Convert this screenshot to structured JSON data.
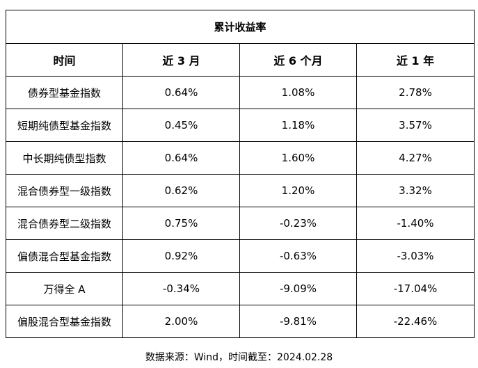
{
  "table": {
    "title": "累计收益率",
    "headers": [
      "时间",
      "近 3 月",
      "近 6 个月",
      "近 1 年"
    ],
    "rows": [
      [
        "债券型基金指数",
        "0.64%",
        "1.08%",
        "2.78%"
      ],
      [
        "短期纯债型基金指数",
        "0.45%",
        "1.18%",
        "3.57%"
      ],
      [
        "中长期纯债型指数",
        "0.64%",
        "1.60%",
        "4.27%"
      ],
      [
        "混合债券型一级指数",
        "0.62%",
        "1.20%",
        "3.32%"
      ],
      [
        "混合债券型二级指数",
        "0.75%",
        "-0.23%",
        "-1.40%"
      ],
      [
        "偏债混合型基金指数",
        "0.92%",
        "-0.63%",
        "-3.03%"
      ],
      [
        "万得全 A",
        "-0.34%",
        "-9.09%",
        "-17.04%"
      ],
      [
        "偏股混合型基金指数",
        "2.00%",
        "-9.81%",
        "-22.46%"
      ]
    ]
  },
  "source_note": "数据来源：Wind，时间截至：2024.02.28"
}
